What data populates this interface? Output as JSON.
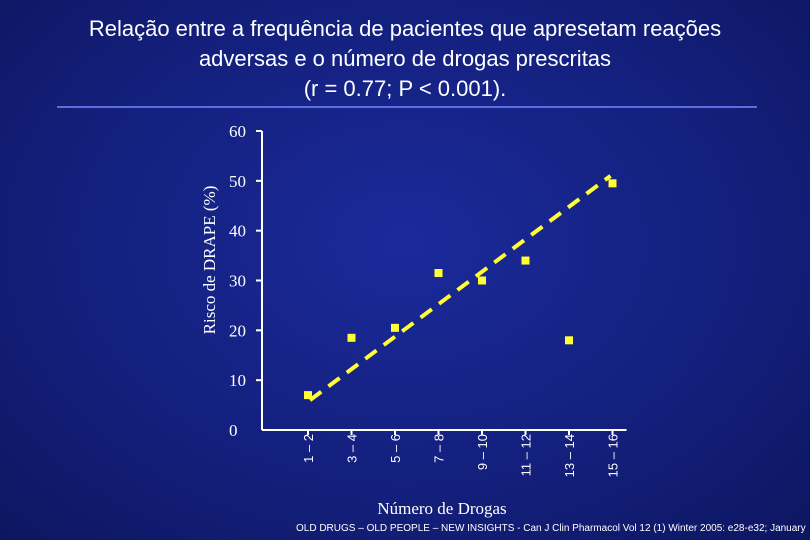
{
  "slide": {
    "title_lines": [
      "Relação entre a frequência de pacientes que apresetam reações",
      "adversas e o número de drogas prescritas",
      "(r = 0.77; P < 0.001)."
    ],
    "footer": "OLD DRUGS – OLD PEOPLE – NEW INSIGHTS - Can J Clin Pharmacol Vol 12 (1) Winter 2005: e28-e32; January"
  },
  "colors": {
    "background": "#14207e",
    "text": "#ffffff",
    "points": "#ffff33",
    "trendline": "#ffff33",
    "rule": "#5a6ee0"
  },
  "chart_data": {
    "type": "scatter",
    "title": "Relação entre a frequência de pacientes que apresetam reações adversas e o número de drogas prescritas (r = 0.77; P < 0.001).",
    "xlabel": "Número de Drogas",
    "ylabel": "Risco de DRAPE (%)",
    "categories": [
      "1 – 2",
      "3 – 4",
      "5 – 6",
      "7 – 8",
      "9 – 10",
      "11 – 12",
      "13 – 14",
      "15 – 16"
    ],
    "y_ticks": [
      0,
      10,
      20,
      30,
      40,
      50,
      60
    ],
    "ylim": [
      0,
      60
    ],
    "series": [
      {
        "values": [
          7,
          18.5,
          20.5,
          31.5,
          30,
          34,
          18,
          49.5
        ]
      }
    ],
    "trendline": {
      "from": [
        1,
        6
      ],
      "to": [
        8,
        51
      ],
      "style": "dashed"
    },
    "grid": false
  }
}
